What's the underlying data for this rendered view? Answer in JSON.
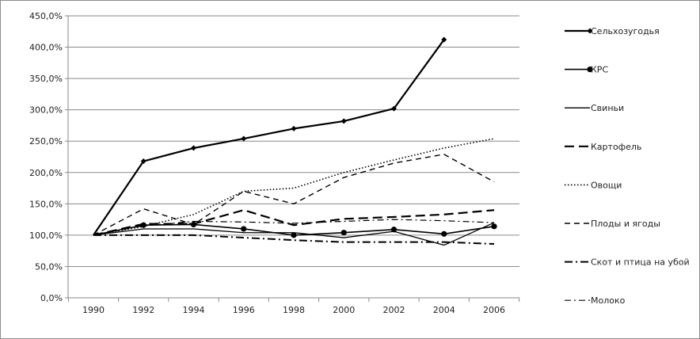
{
  "chart_data": {
    "type": "line",
    "title": "",
    "xlabel": "",
    "ylabel": "",
    "x": [
      1990,
      1992,
      1994,
      1996,
      1998,
      2000,
      2002,
      2004,
      2006
    ],
    "x_tick_labels": [
      "1990",
      "1992",
      "1994",
      "1996",
      "1998",
      "2000",
      "2002",
      "2004",
      "2006"
    ],
    "ylim": [
      0,
      450
    ],
    "y_ticks": [
      0,
      50,
      100,
      150,
      200,
      250,
      300,
      350,
      400,
      450
    ],
    "y_tick_labels": [
      "0,0%",
      "50,0%",
      "100,0%",
      "150,0%",
      "200,0%",
      "250,0%",
      "300,0%",
      "350,0%",
      "400,0%",
      "450,0%"
    ],
    "grid": "horizontal",
    "legend_position": "right",
    "series": [
      {
        "name": "Сельхозугодья",
        "values": [
          100,
          218,
          239,
          254,
          270,
          282,
          302,
          412,
          null
        ],
        "style": "solid-thick",
        "marker": "diamond",
        "color": "#000000"
      },
      {
        "name": "КРС",
        "values": [
          100,
          116,
          117,
          110,
          100,
          104,
          109,
          102,
          114
        ],
        "style": "solid",
        "marker": "circle",
        "color": "#000000"
      },
      {
        "name": "Свиньи",
        "values": [
          100,
          110,
          110,
          104,
          104,
          96,
          106,
          84,
          120
        ],
        "style": "solid-thin",
        "marker": "none",
        "color": "#000000"
      },
      {
        "name": "Картофель",
        "values": [
          100,
          118,
          118,
          140,
          116,
          126,
          129,
          133,
          140
        ],
        "style": "long-dash",
        "marker": "none",
        "color": "#000000"
      },
      {
        "name": "Овощи",
        "values": [
          100,
          114,
          133,
          170,
          175,
          200,
          220,
          239,
          254
        ],
        "style": "dotted",
        "marker": "none",
        "color": "#000000"
      },
      {
        "name": "Плоды и ягоды",
        "values": [
          100,
          142,
          117,
          170,
          150,
          192,
          215,
          229,
          185
        ],
        "style": "dash",
        "marker": "none",
        "color": "#000000"
      },
      {
        "name": "Скот и птица на убой",
        "values": [
          100,
          100,
          100,
          96,
          92,
          89,
          89,
          89,
          86
        ],
        "style": "dash-dot-thick",
        "marker": "none",
        "color": "#000000"
      },
      {
        "name": "Молоко",
        "values": [
          100,
          115,
          122,
          121,
          119,
          122,
          125,
          123,
          120
        ],
        "style": "dash-dot",
        "marker": "none",
        "color": "#000000"
      }
    ]
  }
}
